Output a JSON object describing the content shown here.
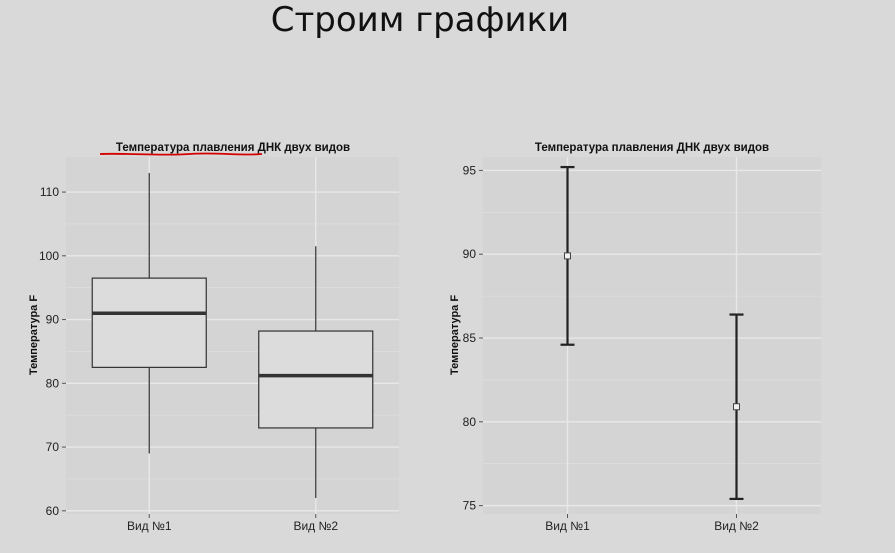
{
  "slide": {
    "title": "Строим графики"
  },
  "chart_data": [
    {
      "type": "box",
      "title": "Температура плавления ДНК двух видов",
      "ylabel": "Температура F",
      "xlabel": "",
      "ylim": [
        59.5,
        115.5
      ],
      "yticks": [
        60,
        70,
        80,
        90,
        100,
        110
      ],
      "categories": [
        "Вид №1",
        "Вид №2"
      ],
      "boxes": [
        {
          "min": 69,
          "q1": 82.5,
          "median": 91,
          "q3": 96.5,
          "max": 113
        },
        {
          "min": 62,
          "q1": 73,
          "median": 81.2,
          "q3": 88.2,
          "max": 101.5
        }
      ],
      "grid": true,
      "title_underline_color": "#d40000"
    },
    {
      "type": "errorbar",
      "title": "Температура плавления ДНК двух видов",
      "ylabel": "Температура F",
      "xlabel": "",
      "ylim": [
        74.5,
        95.8
      ],
      "yticks": [
        75,
        80,
        85,
        90,
        95
      ],
      "categories": [
        "Вид №1",
        "Вид №2"
      ],
      "points": [
        {
          "mean": 89.9,
          "lower": 84.6,
          "upper": 95.2
        },
        {
          "mean": 80.9,
          "lower": 75.4,
          "upper": 86.4
        }
      ],
      "grid": true
    }
  ],
  "colors": {
    "background": "#d9d9d9",
    "panel": "#d4d4d4",
    "grid": "#e8e8e8",
    "ink": "#333333"
  }
}
